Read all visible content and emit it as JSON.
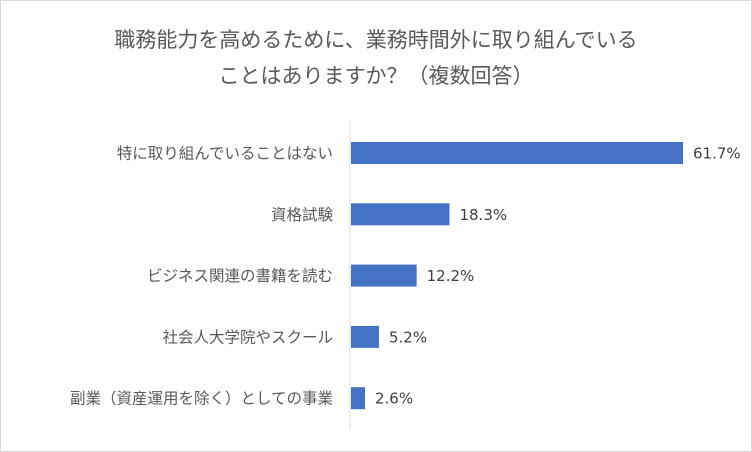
{
  "chart_data": {
    "type": "bar",
    "orientation": "horizontal",
    "title_lines": [
      "職務能力を高めるために、業務時間外に取り組んでいる",
      "ことはありますか？（複数回答）"
    ],
    "categories": [
      "特に取り組んでいることはない",
      "資格試験",
      "ビジネス関連の書籍を読む",
      "社会人大学院やスクール",
      "副業（資産運用を除く）としての事業"
    ],
    "values": [
      61.7,
      18.3,
      12.2,
      5.2,
      2.6
    ],
    "value_labels": [
      "61.7%",
      "18.3%",
      "12.2%",
      "5.2%",
      "2.6%"
    ],
    "unit": "%",
    "xlim": [
      0,
      61.7
    ],
    "grid": false,
    "legend": "none",
    "bar_color": "#4472c4",
    "axis_color": "#d9d9d9"
  }
}
